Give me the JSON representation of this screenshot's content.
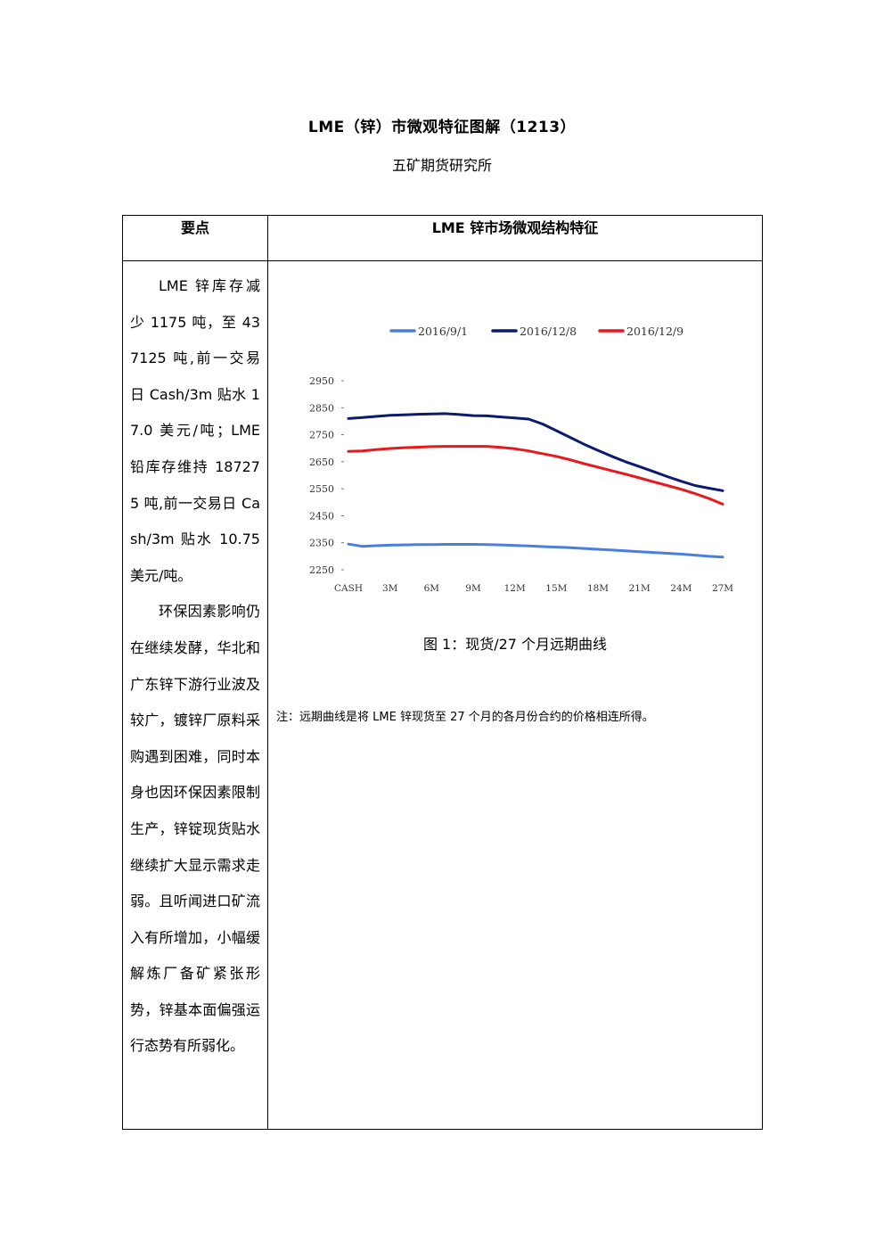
{
  "document": {
    "title": "LME（锌）市微观特征图解（1213）",
    "subtitle": "五矿期货研究所"
  },
  "table": {
    "header_left": "要点",
    "header_right": "LME 锌市场微观结构特征",
    "left_paragraphs": [
      "LME 锌库存减少 1175 吨，至 437125 吨,前一交易日 Cash/3m 贴水 17.0 美元/吨；LME 铅库存维持 187275 吨,前一交易日 Cash/3m 贴水 10.75 美元/吨。",
      "环保因素影响仍在继续发酵，华北和广东锌下游行业波及较广，镀锌厂原料采购遇到困难，同时本身也因环保因素限制生产，锌锭现货贴水继续扩大显示需求走弱。且听闻进口矿流入有所增加，小幅缓解炼厂备矿紧张形势，锌基本面偏强运行态势有所弱化。"
    ],
    "figure_caption": "图 1：现货/27 个月远期曲线",
    "note": "注：远期曲线是将 LME 锌现货至 27 个月的各月份合约的价格相连所得。"
  },
  "chart_data": {
    "type": "line",
    "title": "",
    "xlabel": "",
    "ylabel": "",
    "ylim": [
      2250,
      2950
    ],
    "yticks": [
      2250,
      2350,
      2450,
      2550,
      2650,
      2750,
      2850,
      2950
    ],
    "x_tick_labels": [
      "CASH",
      "3M",
      "6M",
      "9M",
      "12M",
      "15M",
      "18M",
      "21M",
      "24M",
      "27M"
    ],
    "x_tick_positions": [
      0,
      3,
      6,
      9,
      12,
      15,
      18,
      21,
      24,
      27
    ],
    "x": [
      0,
      1,
      2,
      3,
      4,
      5,
      6,
      7,
      8,
      9,
      10,
      11,
      12,
      13,
      14,
      15,
      16,
      17,
      18,
      19,
      20,
      21,
      22,
      23,
      24,
      25,
      26,
      27
    ],
    "legend_position": "top",
    "grid": false,
    "series": [
      {
        "name": "2016/9/1",
        "color": "#4a7fe0",
        "values": [
          2345,
          2337,
          2339,
          2341,
          2342,
          2343,
          2343,
          2344,
          2344,
          2344,
          2343,
          2342,
          2340,
          2338,
          2336,
          2334,
          2332,
          2329,
          2326,
          2323,
          2320,
          2317,
          2314,
          2311,
          2308,
          2304,
          2300,
          2297
        ]
      },
      {
        "name": "2016/12/8",
        "color": "#0d1b6e",
        "values": [
          2810,
          2814,
          2818,
          2822,
          2824,
          2826,
          2827,
          2828,
          2825,
          2821,
          2820,
          2816,
          2812,
          2808,
          2790,
          2765,
          2740,
          2715,
          2692,
          2670,
          2650,
          2632,
          2614,
          2595,
          2578,
          2562,
          2552,
          2543
        ]
      },
      {
        "name": "2016/12/9",
        "color": "#e6191c",
        "values": [
          2688,
          2690,
          2695,
          2699,
          2702,
          2704,
          2706,
          2707,
          2707,
          2707,
          2707,
          2703,
          2698,
          2690,
          2680,
          2670,
          2657,
          2643,
          2630,
          2617,
          2604,
          2590,
          2576,
          2562,
          2548,
          2532,
          2514,
          2493
        ]
      }
    ]
  }
}
